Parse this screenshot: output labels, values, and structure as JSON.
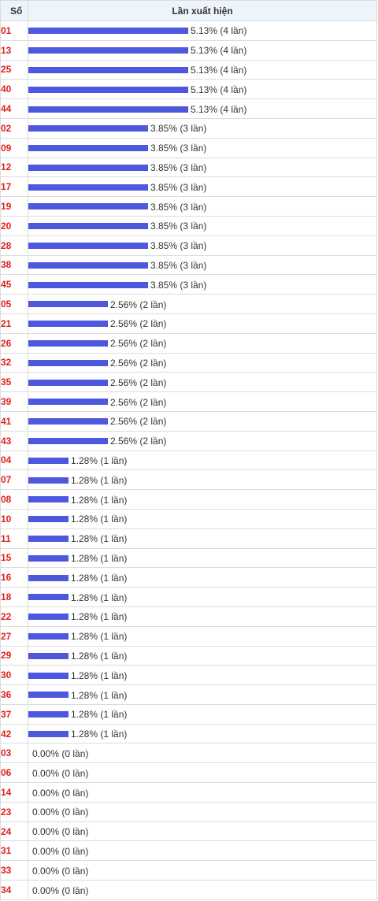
{
  "table": {
    "header_number": "Số",
    "header_frequency": "Lần xuất hiện"
  },
  "colors": {
    "bar": "#4e58dd",
    "number": "#e02020",
    "header_bg": "#eef4fb"
  },
  "chart_data": {
    "type": "bar",
    "orientation": "horizontal",
    "categories": [
      "01",
      "13",
      "25",
      "40",
      "44",
      "02",
      "09",
      "12",
      "17",
      "19",
      "20",
      "28",
      "38",
      "45",
      "05",
      "21",
      "26",
      "32",
      "35",
      "39",
      "41",
      "43",
      "04",
      "07",
      "08",
      "10",
      "11",
      "15",
      "16",
      "18",
      "22",
      "27",
      "29",
      "30",
      "36",
      "37",
      "42",
      "03",
      "06",
      "14",
      "23",
      "24",
      "31",
      "33",
      "34"
    ],
    "values": [
      5.13,
      5.13,
      5.13,
      5.13,
      5.13,
      3.85,
      3.85,
      3.85,
      3.85,
      3.85,
      3.85,
      3.85,
      3.85,
      3.85,
      2.56,
      2.56,
      2.56,
      2.56,
      2.56,
      2.56,
      2.56,
      2.56,
      1.28,
      1.28,
      1.28,
      1.28,
      1.28,
      1.28,
      1.28,
      1.28,
      1.28,
      1.28,
      1.28,
      1.28,
      1.28,
      1.28,
      1.28,
      0,
      0,
      0,
      0,
      0,
      0,
      0,
      0
    ],
    "labels": [
      "5.13% (4 lần)",
      "5.13% (4 lần)",
      "5.13% (4 lần)",
      "5.13% (4 lần)",
      "5.13% (4 lần)",
      "3.85% (3 lần)",
      "3.85% (3 lần)",
      "3.85% (3 lần)",
      "3.85% (3 lần)",
      "3.85% (3 lần)",
      "3.85% (3 lần)",
      "3.85% (3 lần)",
      "3.85% (3 lần)",
      "3.85% (3 lần)",
      "2.56% (2 lần)",
      "2.56% (2 lần)",
      "2.56% (2 lần)",
      "2.56% (2 lần)",
      "2.56% (2 lần)",
      "2.56% (2 lần)",
      "2.56% (2 lần)",
      "2.56% (2 lần)",
      "1.28% (1 lần)",
      "1.28% (1 lần)",
      "1.28% (1 lần)",
      "1.28% (1 lần)",
      "1.28% (1 lần)",
      "1.28% (1 lần)",
      "1.28% (1 lần)",
      "1.28% (1 lần)",
      "1.28% (1 lần)",
      "1.28% (1 lần)",
      "1.28% (1 lần)",
      "1.28% (1 lần)",
      "1.28% (1 lần)",
      "1.28% (1 lần)",
      "1.28% (1 lần)",
      "0.00% (0 lần)",
      "0.00% (0 lần)",
      "0.00% (0 lần)",
      "0.00% (0 lần)",
      "0.00% (0 lần)",
      "0.00% (0 lần)",
      "0.00% (0 lần)",
      "0.00% (0 lần)"
    ],
    "xlim": [
      0,
      5.13
    ]
  }
}
